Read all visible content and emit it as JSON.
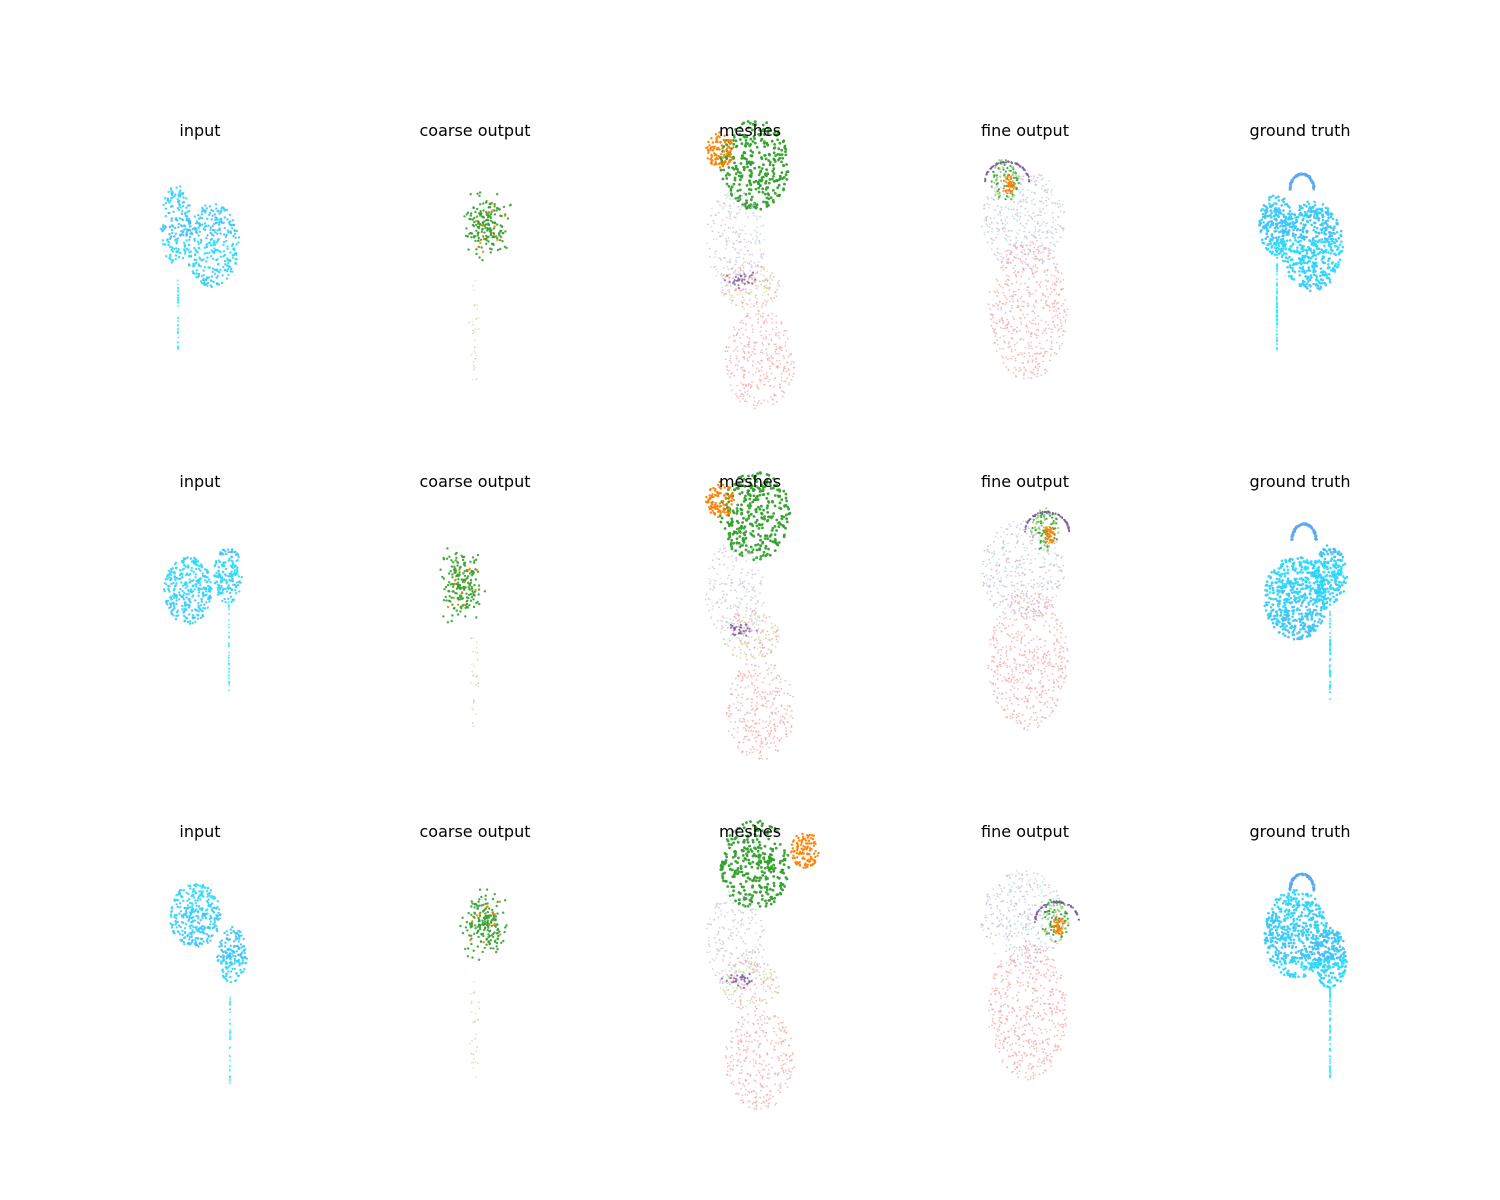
{
  "figure": {
    "rows": [
      {
        "panels": [
          {
            "title": "input",
            "kind": "input"
          },
          {
            "title": "coarse output",
            "kind": "coarse"
          },
          {
            "title": "meshes",
            "kind": "meshes"
          },
          {
            "title": "fine output",
            "kind": "fine"
          },
          {
            "title": "ground truth",
            "kind": "gt"
          }
        ]
      },
      {
        "panels": [
          {
            "title": "input",
            "kind": "input"
          },
          {
            "title": "coarse output",
            "kind": "coarse"
          },
          {
            "title": "meshes",
            "kind": "meshes"
          },
          {
            "title": "fine output",
            "kind": "fine"
          },
          {
            "title": "ground truth",
            "kind": "gt"
          }
        ]
      },
      {
        "panels": [
          {
            "title": "input",
            "kind": "input"
          },
          {
            "title": "coarse output",
            "kind": "coarse"
          },
          {
            "title": "meshes",
            "kind": "meshes"
          },
          {
            "title": "fine output",
            "kind": "fine"
          },
          {
            "title": "ground truth",
            "kind": "gt"
          }
        ]
      }
    ],
    "colors": {
      "cyan_gradient": [
        "#1ee8ff",
        "#5aa8f0"
      ],
      "segments": [
        "#f4a6a6",
        "#b9d7e8",
        "#c7e5a5",
        "#33a02c",
        "#ff7f00",
        "#7b5aa6",
        "#cab2d6",
        "#8fd16b"
      ]
    }
  }
}
